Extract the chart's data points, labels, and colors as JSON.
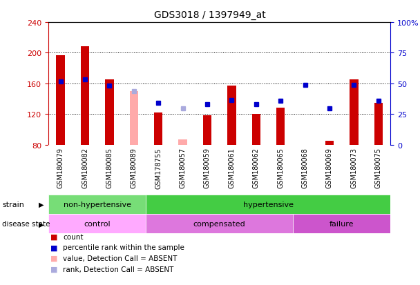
{
  "title": "GDS3018 / 1397949_at",
  "samples": [
    "GSM180079",
    "GSM180082",
    "GSM180085",
    "GSM180089",
    "GSM178755",
    "GSM180057",
    "GSM180059",
    "GSM180061",
    "GSM180062",
    "GSM180065",
    "GSM180068",
    "GSM180069",
    "GSM180073",
    "GSM180075"
  ],
  "count_values": [
    197,
    208,
    165,
    null,
    122,
    null,
    118,
    157,
    120,
    128,
    null,
    85,
    165,
    135
  ],
  "count_absent": [
    null,
    null,
    null,
    150,
    null,
    87,
    null,
    null,
    null,
    null,
    null,
    null,
    null,
    null
  ],
  "percentile_values": [
    162,
    165,
    157,
    null,
    135,
    null,
    133,
    138,
    133,
    137,
    158,
    127,
    158,
    137
  ],
  "percentile_absent": [
    null,
    null,
    null,
    150,
    null,
    127,
    null,
    null,
    null,
    null,
    null,
    null,
    null,
    null
  ],
  "ylim_left": [
    80,
    240
  ],
  "ylim_right": [
    0,
    100
  ],
  "yticks_left": [
    80,
    120,
    160,
    200,
    240
  ],
  "yticks_right": [
    0,
    25,
    50,
    75,
    100
  ],
  "ytick_labels_left": [
    "80",
    "120",
    "160",
    "200",
    "240"
  ],
  "ytick_labels_right": [
    "0",
    "25",
    "50",
    "75",
    "100%"
  ],
  "strain_groups": [
    {
      "label": "non-hypertensive",
      "start": 0,
      "end": 4,
      "color": "#77dd77"
    },
    {
      "label": "hypertensive",
      "start": 4,
      "end": 14,
      "color": "#44cc44"
    }
  ],
  "disease_groups": [
    {
      "label": "control",
      "start": 0,
      "end": 4,
      "color": "#ffaaff"
    },
    {
      "label": "compensated",
      "start": 4,
      "end": 10,
      "color": "#dd77dd"
    },
    {
      "label": "failure",
      "start": 10,
      "end": 14,
      "color": "#cc55cc"
    }
  ],
  "legend_items": [
    {
      "label": "count",
      "color": "#cc0000"
    },
    {
      "label": "percentile rank within the sample",
      "color": "#0000cc"
    },
    {
      "label": "value, Detection Call = ABSENT",
      "color": "#ffaaaa"
    },
    {
      "label": "rank, Detection Call = ABSENT",
      "color": "#aaaadd"
    }
  ],
  "bar_color_present": "#cc0000",
  "bar_color_absent": "#ffaaaa",
  "dot_color_present": "#0000cc",
  "dot_color_absent": "#aaaadd",
  "bar_width": 0.35,
  "tick_color_left": "#cc0000",
  "tick_color_right": "#0000cc",
  "xtick_bg": "#cccccc",
  "gridline_color": "#000000",
  "top_border_color": "#000000"
}
